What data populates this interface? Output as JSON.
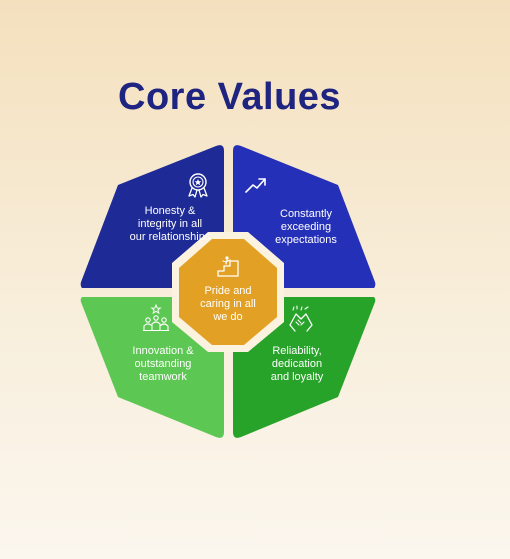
{
  "title": "Core Values",
  "segments": [
    {
      "id": "honesty",
      "text": "Honesty &\nintegrity in all\nour relationships",
      "icon": "award-medal-icon",
      "color": "#1e2a96"
    },
    {
      "id": "exceeding",
      "text": "Constantly\nexceeding\nexpectations",
      "icon": "trend-up-icon",
      "color": "#2530b8"
    },
    {
      "id": "innovation",
      "text": "Innovation &\noutstanding\nteamwork",
      "icon": "team-star-icon",
      "color": "#5cc752"
    },
    {
      "id": "reliability",
      "text": "Reliability,\ndedication\nand loyalty",
      "icon": "handshake-icon",
      "color": "#27a329"
    }
  ],
  "center": {
    "text": "Pride and\ncaring in all\nwe do",
    "icon": "podium-stairs-icon",
    "color": "#e2a024",
    "ring_color": "#fbf2df"
  }
}
